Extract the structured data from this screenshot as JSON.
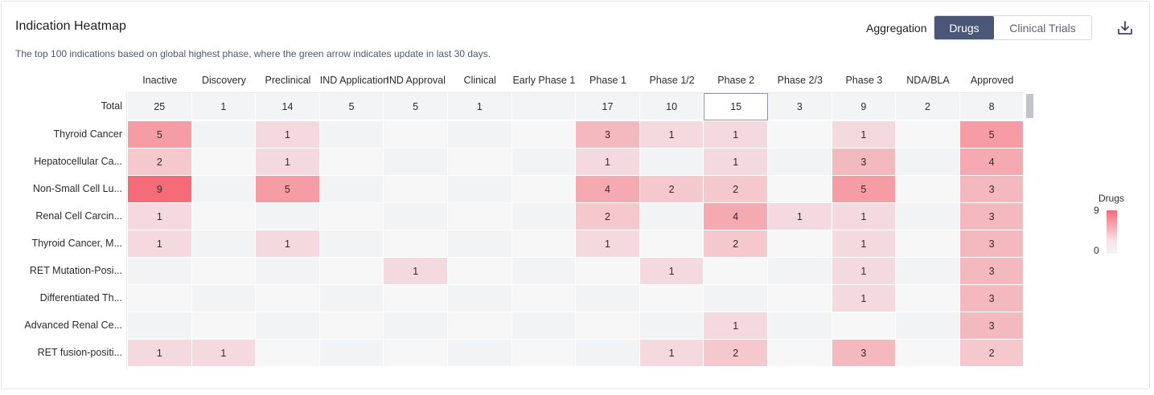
{
  "header": {
    "title": "Indication Heatmap",
    "subtitle": "The top 100 indications based on global highest phase, where the green arrow indicates update in last 30 days.",
    "aggregation_label": "Aggregation",
    "aggregation_options": [
      "Drugs",
      "Clinical Trials"
    ],
    "aggregation_selected": "Drugs"
  },
  "legend": {
    "title": "Drugs",
    "max": "9",
    "min": "0"
  },
  "chart_data": {
    "type": "heatmap",
    "columns": [
      "Inactive",
      "Discovery",
      "Preclinical",
      "IND Application",
      "IND Approval",
      "Clinical",
      "Early Phase 1",
      "Phase 1",
      "Phase 1/2",
      "Phase 2",
      "Phase 2/3",
      "Phase 3",
      "NDA/BLA",
      "Approved"
    ],
    "total_label": "Total",
    "totals": [
      25,
      1,
      14,
      5,
      5,
      1,
      null,
      17,
      10,
      15,
      3,
      9,
      2,
      8
    ],
    "rows": [
      {
        "label": "Thyroid Cancer",
        "values": [
          5,
          null,
          1,
          null,
          null,
          null,
          null,
          3,
          1,
          1,
          null,
          1,
          null,
          5
        ]
      },
      {
        "label": "Hepatocellular Ca...",
        "values": [
          2,
          null,
          1,
          null,
          null,
          null,
          null,
          1,
          null,
          1,
          null,
          3,
          null,
          4
        ]
      },
      {
        "label": "Non-Small Cell Lu...",
        "values": [
          9,
          null,
          5,
          null,
          null,
          null,
          null,
          4,
          2,
          2,
          null,
          5,
          null,
          3
        ]
      },
      {
        "label": "Renal Cell Carcin...",
        "values": [
          1,
          null,
          null,
          null,
          null,
          null,
          null,
          2,
          null,
          4,
          1,
          1,
          null,
          3
        ]
      },
      {
        "label": "Thyroid Cancer, M...",
        "values": [
          1,
          null,
          1,
          null,
          null,
          null,
          null,
          1,
          null,
          2,
          null,
          1,
          null,
          3
        ]
      },
      {
        "label": "RET Mutation-Posi...",
        "values": [
          null,
          null,
          null,
          null,
          1,
          null,
          null,
          null,
          1,
          null,
          null,
          1,
          null,
          3
        ]
      },
      {
        "label": "Differentiated Th...",
        "values": [
          null,
          null,
          null,
          null,
          null,
          null,
          null,
          null,
          null,
          null,
          null,
          1,
          null,
          3
        ]
      },
      {
        "label": "Advanced Renal Ce...",
        "values": [
          null,
          null,
          null,
          null,
          null,
          null,
          null,
          null,
          null,
          1,
          null,
          null,
          null,
          3
        ]
      },
      {
        "label": "RET fusion-positi...",
        "values": [
          1,
          1,
          null,
          null,
          null,
          null,
          null,
          null,
          1,
          2,
          null,
          3,
          null,
          2
        ]
      }
    ],
    "color_min": "#f4f4f6",
    "color_max": "#f56b78",
    "value_range": [
      0,
      9
    ],
    "selected_total_column": "Phase 2"
  }
}
